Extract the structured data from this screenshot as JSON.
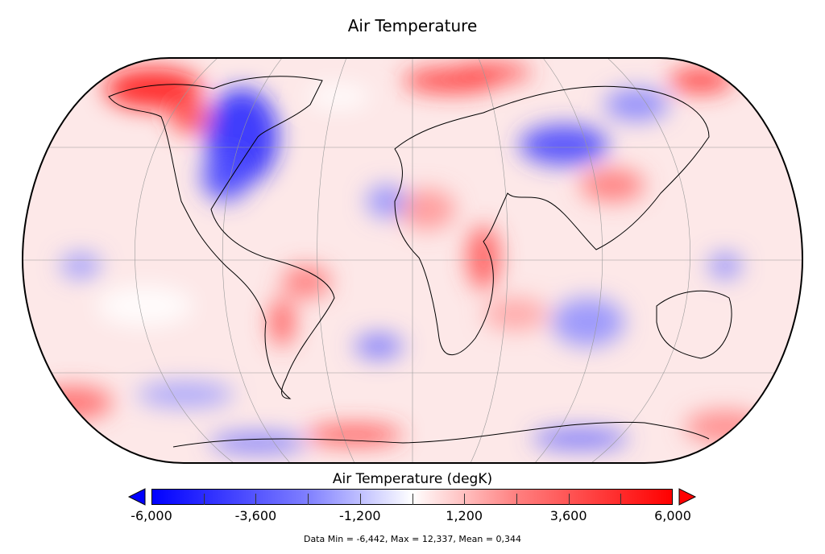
{
  "title": "Air Temperature",
  "map": {
    "projection": "Robinson",
    "variable": "Air Temperature",
    "colormap": "blue-white-red diverging"
  },
  "colorbar": {
    "title": "Air Temperature (degK)",
    "range": [
      -6000,
      6000
    ],
    "tick_labels": [
      "-6,000",
      "-3,600",
      "-1,200",
      "1,200",
      "3,600",
      "6,000"
    ],
    "low_color": "#0000ff",
    "mid_color": "#ffffff",
    "high_color": "#ff0000",
    "extend": "both"
  },
  "footer": "Data Min = -6,442, Max = 12,337, Mean = 0,344"
}
